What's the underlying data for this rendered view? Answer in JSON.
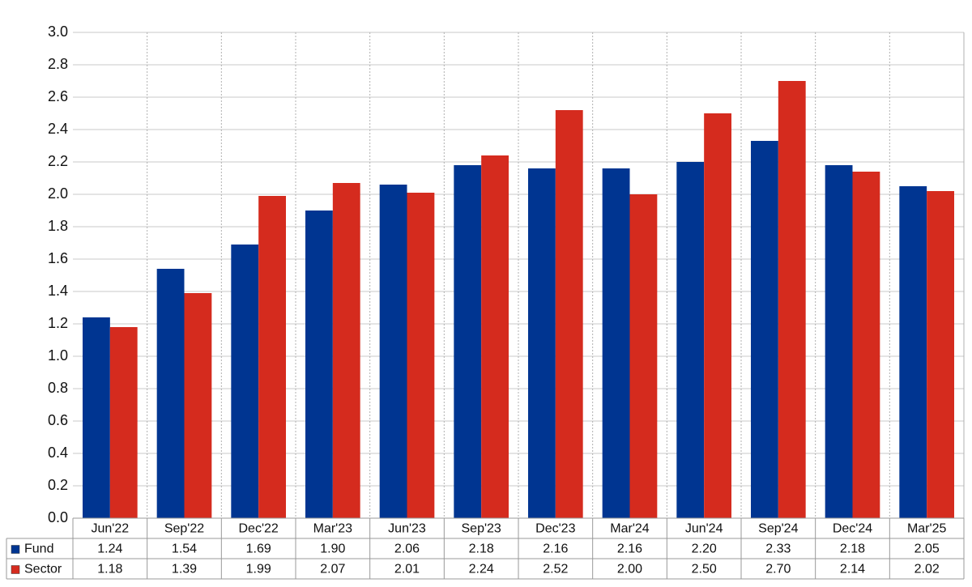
{
  "chart_data": {
    "type": "bar",
    "categories": [
      "Jun'22",
      "Sep'22",
      "Dec'22",
      "Mar'23",
      "Jun'23",
      "Sep'23",
      "Dec'23",
      "Mar'24",
      "Jun'24",
      "Sep'24",
      "Dec'24",
      "Mar'25"
    ],
    "series": [
      {
        "name": "Fund",
        "color": "#003591",
        "values": [
          1.24,
          1.54,
          1.69,
          1.9,
          2.06,
          2.18,
          2.16,
          2.16,
          2.2,
          2.33,
          2.18,
          2.05
        ],
        "value_labels": [
          "1.24",
          "1.54",
          "1.69",
          "1.90",
          "2.06",
          "2.18",
          "2.16",
          "2.16",
          "2.20",
          "2.33",
          "2.18",
          "2.05"
        ]
      },
      {
        "name": "Sector",
        "color": "#d52b1e",
        "values": [
          1.18,
          1.39,
          1.99,
          2.07,
          2.01,
          2.24,
          2.52,
          2.0,
          2.5,
          2.7,
          2.14,
          2.02
        ],
        "value_labels": [
          "1.18",
          "1.39",
          "1.99",
          "2.07",
          "2.01",
          "2.24",
          "2.52",
          "2.00",
          "2.50",
          "2.70",
          "2.14",
          "2.02"
        ]
      }
    ],
    "ylim": [
      0,
      3
    ],
    "yticks": [
      {
        "value": 0,
        "label": "0.0"
      },
      0.2,
      0.4,
      0.6,
      0.8,
      {
        "value": 1,
        "label": "1.0"
      },
      1.2,
      1.4,
      1.6,
      1.8,
      {
        "value": 2,
        "label": "2.0"
      },
      2.2,
      2.4,
      2.6,
      2.8,
      {
        "value": 3,
        "label": "3.0"
      }
    ],
    "grid": true
  }
}
